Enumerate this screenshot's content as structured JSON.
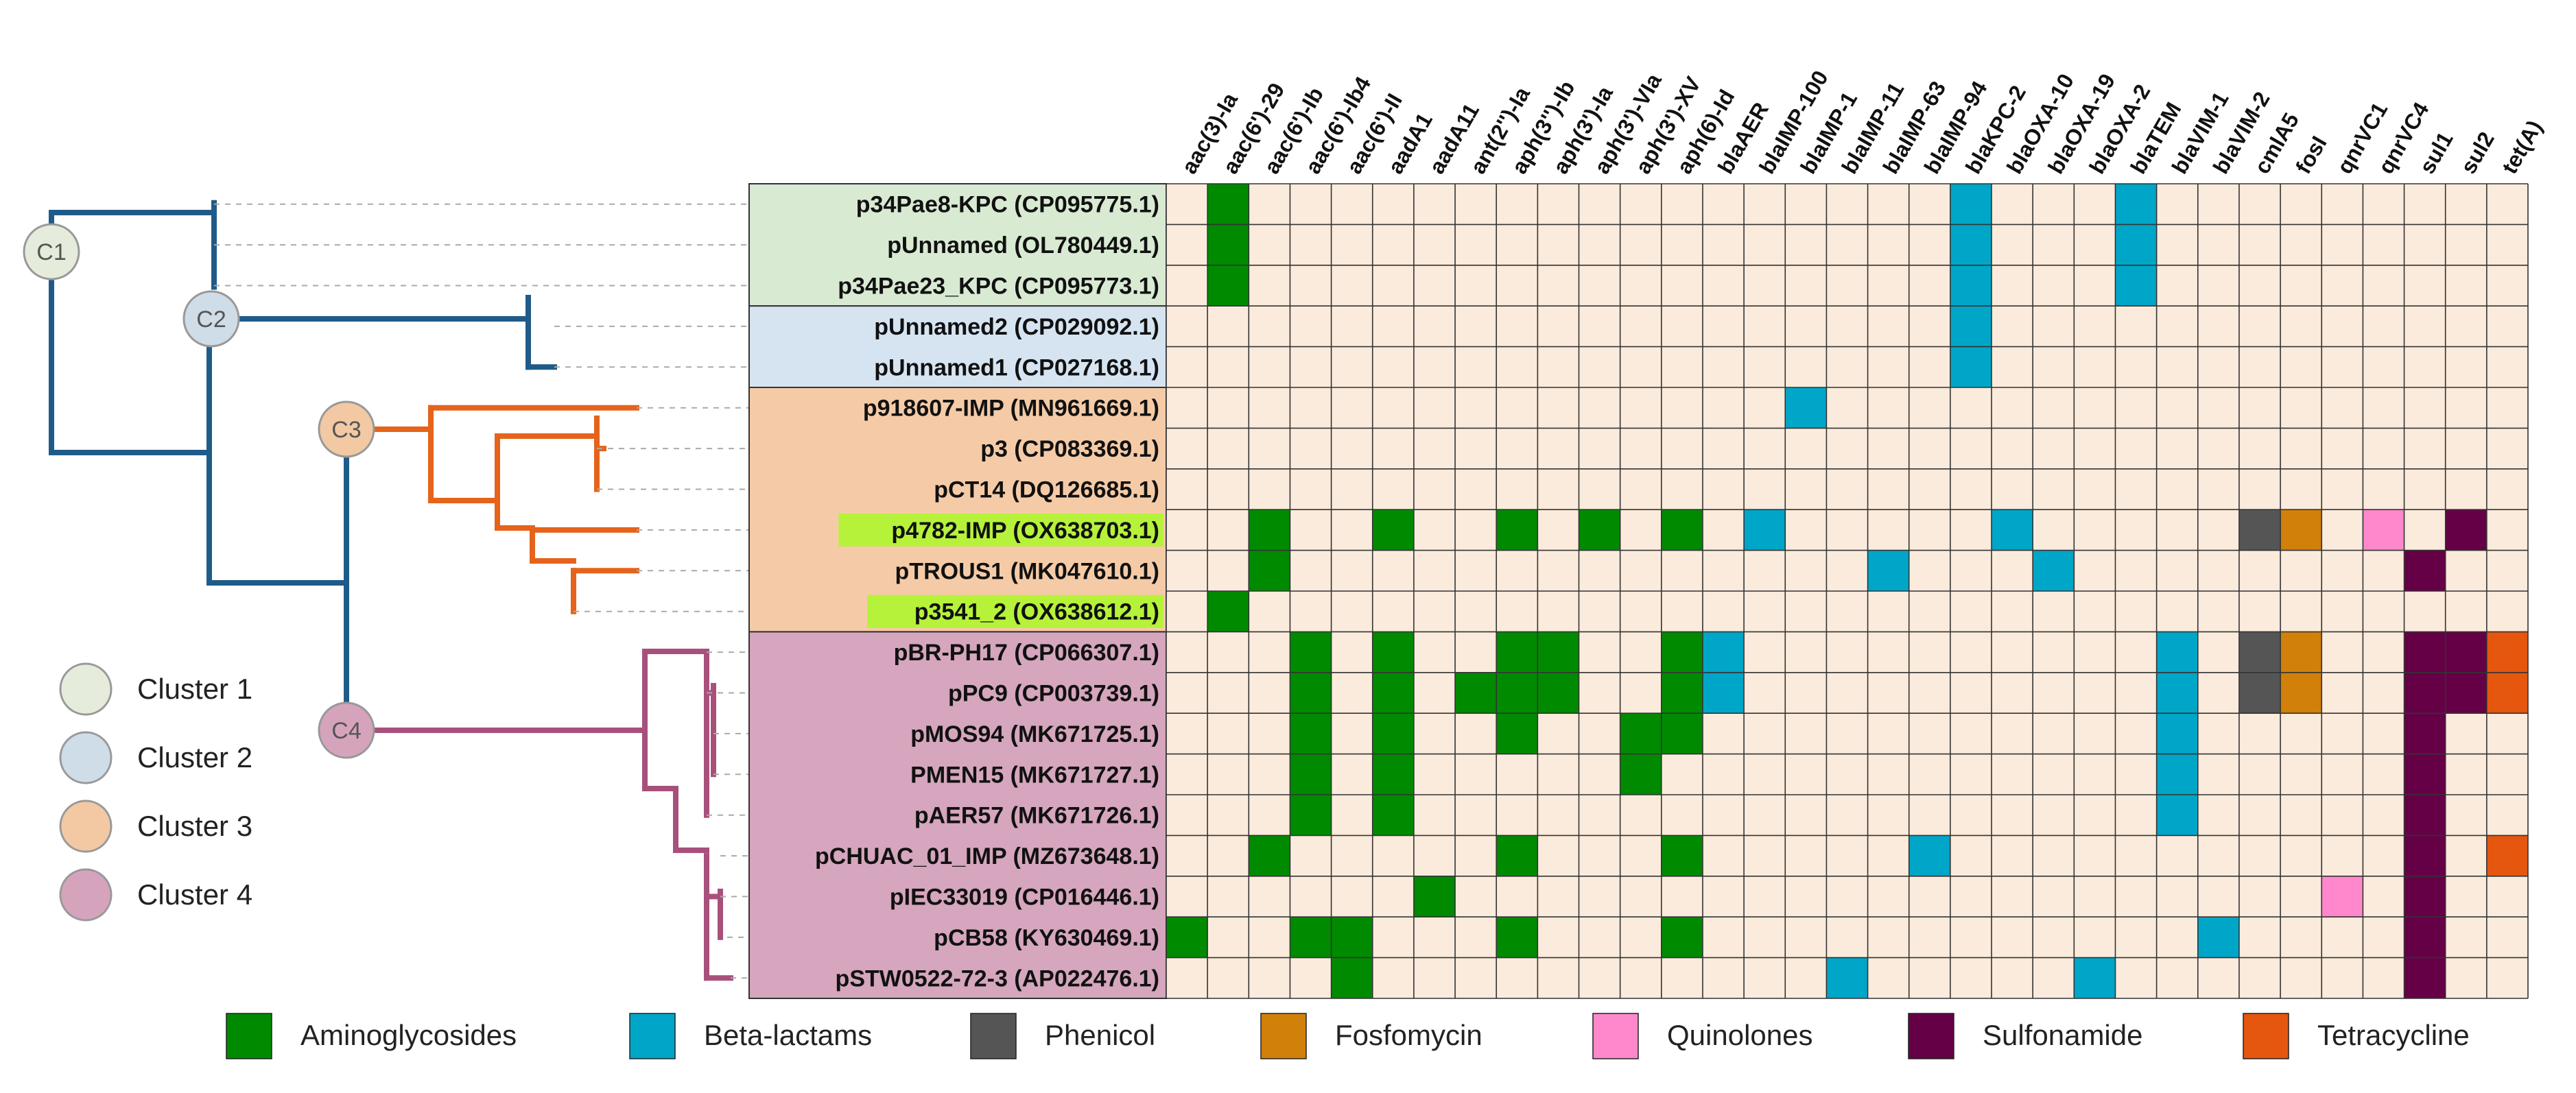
{
  "clusters": [
    {
      "label": "Cluster 1",
      "short": "C1",
      "color": "#e5ecdc",
      "branch_color": "#1f5b89"
    },
    {
      "label": "Cluster 2",
      "short": "C2",
      "color": "#cfdde8",
      "branch_color": "#1f5b89"
    },
    {
      "label": "Cluster 3",
      "short": "C3",
      "color": "#f2c9a3",
      "branch_color": "#e5631b"
    },
    {
      "label": "Cluster 4",
      "short": "C4",
      "color": "#d6a3bd",
      "branch_color": "#a8507c"
    }
  ],
  "cluster_bands": [
    {
      "label": "Cluster 1",
      "color": "#d9ead3",
      "first_row": 0,
      "last_row": 2
    },
    {
      "label": "Cluster 2",
      "color": "#d6e4f2",
      "first_row": 3,
      "last_row": 4
    },
    {
      "label": "Cluster 3",
      "color": "#f5cba7",
      "first_row": 5,
      "last_row": 10
    },
    {
      "label": "Cluster 4",
      "color": "#d5a6bd",
      "first_row": 11,
      "last_row": 19
    }
  ],
  "genes": [
    "aac(3)-Ia",
    "aac(6')-29",
    "aac(6')-Ib",
    "aac(6')-Ib4",
    "aac(6')-II",
    "aadA1",
    "aadA11",
    "ant(2'')-Ia",
    "aph(3'')-Ib",
    "aph(3')-Ia",
    "aph(3')-VIa",
    "aph(3')-XV",
    "aph(6)-Id",
    "blaAER",
    "blaIMP-100",
    "blaIMP-1",
    "blaIMP-11",
    "blaIMP-63",
    "blaIMP-94",
    "blaKPC-2",
    "blaOXA-10",
    "blaOXA-19",
    "blaOXA-2",
    "blaTEM",
    "blaVIM-1",
    "blaVIM-2",
    "cmlA5",
    "fosI",
    "qnrVC1",
    "qnrVC4",
    "sul1",
    "sul2",
    "tet(A)"
  ],
  "plasmids": [
    {
      "name": "p34Pae8-KPC (CP095775.1)",
      "highlight": false
    },
    {
      "name": "pUnnamed (OL780449.1)",
      "highlight": false
    },
    {
      "name": "p34Pae23_KPC (CP095773.1)",
      "highlight": false
    },
    {
      "name": "pUnnamed2 (CP029092.1)",
      "highlight": false
    },
    {
      "name": "pUnnamed1 (CP027168.1)",
      "highlight": false
    },
    {
      "name": "p918607-IMP (MN961669.1)",
      "highlight": false
    },
    {
      "name": "p3 (CP083369.1)",
      "highlight": false
    },
    {
      "name": "pCT14 (DQ126685.1)",
      "highlight": false
    },
    {
      "name": "p4782-IMP (OX638703.1)",
      "highlight": true
    },
    {
      "name": "pTROUS1 (MK047610.1)",
      "highlight": false
    },
    {
      "name": "p3541_2 (OX638612.1)",
      "highlight": true
    },
    {
      "name": "pBR-PH17 (CP066307.1)",
      "highlight": false
    },
    {
      "name": "pPC9 (CP003739.1)",
      "highlight": false
    },
    {
      "name": "pMOS94 (MK671725.1)",
      "highlight": false
    },
    {
      "name": "PMEN15 (MK671727.1)",
      "highlight": false
    },
    {
      "name": "pAER57 (MK671726.1)",
      "highlight": false
    },
    {
      "name": "pCHUAC_01_IMP (MZ673648.1)",
      "highlight": false
    },
    {
      "name": "pIEC33019 (CP016446.1)",
      "highlight": false
    },
    {
      "name": "pCB58 (KY630469.1)",
      "highlight": false
    },
    {
      "name": "pSTW0522-72-3 (AP022476.1)",
      "highlight": false
    }
  ],
  "presence": [
    [
      0,
      1,
      0,
      0,
      0,
      0,
      0,
      0,
      0,
      0,
      0,
      0,
      0,
      0,
      0,
      0,
      0,
      0,
      0,
      2,
      0,
      0,
      0,
      2,
      0,
      0,
      0,
      0,
      0,
      0,
      0,
      0,
      0
    ],
    [
      0,
      1,
      0,
      0,
      0,
      0,
      0,
      0,
      0,
      0,
      0,
      0,
      0,
      0,
      0,
      0,
      0,
      0,
      0,
      2,
      0,
      0,
      0,
      2,
      0,
      0,
      0,
      0,
      0,
      0,
      0,
      0,
      0
    ],
    [
      0,
      1,
      0,
      0,
      0,
      0,
      0,
      0,
      0,
      0,
      0,
      0,
      0,
      0,
      0,
      0,
      0,
      0,
      0,
      2,
      0,
      0,
      0,
      2,
      0,
      0,
      0,
      0,
      0,
      0,
      0,
      0,
      0
    ],
    [
      0,
      0,
      0,
      0,
      0,
      0,
      0,
      0,
      0,
      0,
      0,
      0,
      0,
      0,
      0,
      0,
      0,
      0,
      0,
      2,
      0,
      0,
      0,
      0,
      0,
      0,
      0,
      0,
      0,
      0,
      0,
      0,
      0
    ],
    [
      0,
      0,
      0,
      0,
      0,
      0,
      0,
      0,
      0,
      0,
      0,
      0,
      0,
      0,
      0,
      0,
      0,
      0,
      0,
      2,
      0,
      0,
      0,
      0,
      0,
      0,
      0,
      0,
      0,
      0,
      0,
      0,
      0
    ],
    [
      0,
      0,
      0,
      0,
      0,
      0,
      0,
      0,
      0,
      0,
      0,
      0,
      0,
      0,
      0,
      2,
      0,
      0,
      0,
      0,
      0,
      0,
      0,
      0,
      0,
      0,
      0,
      0,
      0,
      0,
      0,
      0,
      0
    ],
    [
      0,
      0,
      0,
      0,
      0,
      0,
      0,
      0,
      0,
      0,
      0,
      0,
      0,
      0,
      0,
      0,
      0,
      0,
      0,
      0,
      0,
      0,
      0,
      0,
      0,
      0,
      0,
      0,
      0,
      0,
      0,
      0,
      0
    ],
    [
      0,
      0,
      0,
      0,
      0,
      0,
      0,
      0,
      0,
      0,
      0,
      0,
      0,
      0,
      0,
      0,
      0,
      0,
      0,
      0,
      0,
      0,
      0,
      0,
      0,
      0,
      0,
      0,
      0,
      0,
      0,
      0,
      0
    ],
    [
      0,
      0,
      1,
      0,
      0,
      1,
      0,
      0,
      1,
      0,
      1,
      0,
      1,
      0,
      2,
      0,
      0,
      0,
      0,
      0,
      2,
      0,
      0,
      0,
      0,
      0,
      3,
      4,
      0,
      5,
      0,
      6,
      0
    ],
    [
      0,
      0,
      1,
      0,
      0,
      0,
      0,
      0,
      0,
      0,
      0,
      0,
      0,
      0,
      0,
      0,
      0,
      2,
      0,
      0,
      0,
      2,
      0,
      0,
      0,
      0,
      0,
      0,
      0,
      0,
      6,
      0,
      0
    ],
    [
      0,
      1,
      0,
      0,
      0,
      0,
      0,
      0,
      0,
      0,
      0,
      0,
      0,
      0,
      0,
      0,
      0,
      0,
      0,
      0,
      0,
      0,
      0,
      0,
      0,
      0,
      0,
      0,
      0,
      0,
      0,
      0,
      0
    ],
    [
      0,
      0,
      0,
      1,
      0,
      1,
      0,
      0,
      1,
      1,
      0,
      0,
      1,
      2,
      0,
      0,
      0,
      0,
      0,
      0,
      0,
      0,
      0,
      0,
      2,
      0,
      3,
      4,
      0,
      0,
      6,
      6,
      7
    ],
    [
      0,
      0,
      0,
      1,
      0,
      1,
      0,
      1,
      1,
      1,
      0,
      0,
      1,
      2,
      0,
      0,
      0,
      0,
      0,
      0,
      0,
      0,
      0,
      0,
      2,
      0,
      3,
      4,
      0,
      0,
      6,
      6,
      7
    ],
    [
      0,
      0,
      0,
      1,
      0,
      1,
      0,
      0,
      1,
      0,
      0,
      1,
      1,
      0,
      0,
      0,
      0,
      0,
      0,
      0,
      0,
      0,
      0,
      0,
      2,
      0,
      0,
      0,
      0,
      0,
      6,
      0,
      0
    ],
    [
      0,
      0,
      0,
      1,
      0,
      1,
      0,
      0,
      0,
      0,
      0,
      1,
      0,
      0,
      0,
      0,
      0,
      0,
      0,
      0,
      0,
      0,
      0,
      0,
      2,
      0,
      0,
      0,
      0,
      0,
      6,
      0,
      0
    ],
    [
      0,
      0,
      0,
      1,
      0,
      1,
      0,
      0,
      0,
      0,
      0,
      0,
      0,
      0,
      0,
      0,
      0,
      0,
      0,
      0,
      0,
      0,
      0,
      0,
      2,
      0,
      0,
      0,
      0,
      0,
      6,
      0,
      0
    ],
    [
      0,
      0,
      1,
      0,
      0,
      0,
      0,
      0,
      1,
      0,
      0,
      0,
      1,
      0,
      0,
      0,
      0,
      0,
      2,
      0,
      0,
      0,
      0,
      0,
      0,
      0,
      0,
      0,
      0,
      0,
      6,
      0,
      7
    ],
    [
      0,
      0,
      0,
      0,
      0,
      0,
      1,
      0,
      0,
      0,
      0,
      0,
      0,
      0,
      0,
      0,
      0,
      0,
      0,
      0,
      0,
      0,
      0,
      0,
      0,
      0,
      0,
      0,
      5,
      0,
      6,
      0,
      0
    ],
    [
      1,
      0,
      0,
      1,
      1,
      0,
      0,
      0,
      1,
      0,
      0,
      0,
      1,
      0,
      0,
      0,
      0,
      0,
      0,
      0,
      0,
      0,
      0,
      0,
      0,
      2,
      0,
      0,
      0,
      0,
      6,
      0,
      0
    ],
    [
      0,
      0,
      0,
      0,
      1,
      0,
      0,
      0,
      0,
      0,
      0,
      0,
      0,
      0,
      0,
      0,
      2,
      0,
      0,
      0,
      0,
      0,
      2,
      0,
      0,
      0,
      0,
      0,
      0,
      0,
      6,
      0,
      0
    ]
  ],
  "class_colors": {
    "0": "#faebdc",
    "1": "#008a00",
    "2": "#00a6c8",
    "3": "#555555",
    "4": "#d1800a",
    "5": "#ff88cc",
    "6": "#650047",
    "7": "#e5560f"
  },
  "highlight_color": "#b6f23a",
  "legend": [
    {
      "label": "Aminoglycosides",
      "color": "#008a00"
    },
    {
      "label": "Beta-lactams",
      "color": "#00a6c8"
    },
    {
      "label": "Phenicol",
      "color": "#555555"
    },
    {
      "label": "Fosfomycin",
      "color": "#d1800a"
    },
    {
      "label": "Quinolones",
      "color": "#ff88cc"
    },
    {
      "label": "Sulfonamide",
      "color": "#650047"
    },
    {
      "label": "Tetracycline",
      "color": "#e5560f"
    }
  ]
}
